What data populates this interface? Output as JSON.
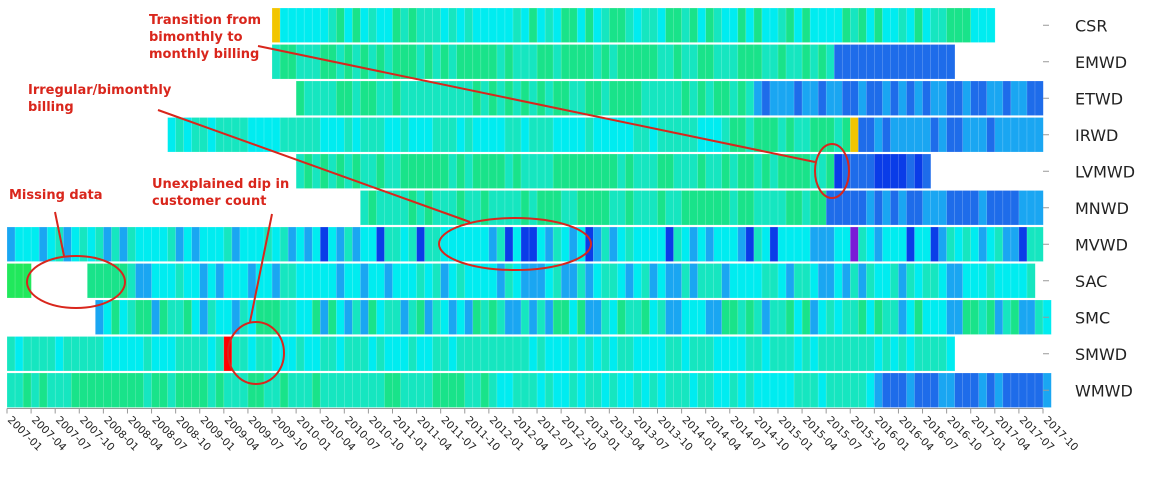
{
  "chart_data": {
    "type": "heatmap",
    "title": "",
    "xlabel": "",
    "ylabel": "",
    "rows": [
      "CSR",
      "EMWD",
      "ETWD",
      "IRWD",
      "LVMWD",
      "MNWD",
      "MVWD",
      "SAC",
      "SMC",
      "SMWD",
      "WMWD"
    ],
    "x_range": [
      "2007-01",
      "2017-10"
    ],
    "x_ticks": [
      "2007-01",
      "2007-04",
      "2007-07",
      "2007-10",
      "2008-01",
      "2008-04",
      "2008-07",
      "2008-10",
      "2009-01",
      "2009-04",
      "2009-07",
      "2009-10",
      "2010-01",
      "2010-04",
      "2010-07",
      "2010-10",
      "2011-01",
      "2011-04",
      "2011-07",
      "2011-10",
      "2012-01",
      "2012-04",
      "2012-07",
      "2012-10",
      "2013-01",
      "2013-04",
      "2013-07",
      "2013-10",
      "2014-01",
      "2014-04",
      "2014-07",
      "2014-10",
      "2015-01",
      "2015-04",
      "2015-07",
      "2015-10",
      "2016-01",
      "2016-04",
      "2016-07",
      "2016-10",
      "2017-01",
      "2017-04",
      "2017-07",
      "2017-10"
    ],
    "series_spans": [
      {
        "row": "CSR",
        "start": "2009-10",
        "end": "2017-03"
      },
      {
        "row": "EMWD",
        "start": "2009-10",
        "end": "2016-10"
      },
      {
        "row": "ETWD",
        "start": "2010-01",
        "end": "2017-09"
      },
      {
        "row": "IRWD",
        "start": "2008-09",
        "end": "2017-09"
      },
      {
        "row": "LVMWD",
        "start": "2010-01",
        "end": "2016-07"
      },
      {
        "row": "MNWD",
        "start": "2010-09",
        "end": "2017-09"
      },
      {
        "row": "MVWD",
        "start": "2007-01",
        "end": "2017-09"
      },
      {
        "row": "SAC",
        "start": "2007-01",
        "end": "2017-08"
      },
      {
        "row": "SMC",
        "start": "2007-12",
        "end": "2017-10"
      },
      {
        "row": "SMWD",
        "start": "2007-01",
        "end": "2016-10"
      },
      {
        "row": "WMWD",
        "start": "2007-01",
        "end": "2017-10"
      }
    ],
    "gaps": [
      {
        "row": "SAC",
        "start": "2007-04",
        "end": "2007-10"
      }
    ],
    "highlights": [
      {
        "row": "CSR",
        "month": "2009-10",
        "color": "#f2c500"
      },
      {
        "row": "IRWD",
        "month": "2015-10",
        "color": "#f2c500"
      },
      {
        "row": "MVWD",
        "month": "2015-10",
        "color": "#7a1bd6"
      },
      {
        "row": "SMWD",
        "month": "2009-04",
        "color": "#ff0000"
      }
    ],
    "annotations": [
      {
        "text": "Transition from bimonthly to monthly billing",
        "lines": [
          "Transition from",
          "bimonthly to",
          "monthly billing"
        ]
      },
      {
        "text": "Irregular/bimonthly billing",
        "lines": [
          "Irregular/bimonthly",
          "billing"
        ]
      },
      {
        "text": "Missing data",
        "lines": [
          "Missing data"
        ]
      },
      {
        "text": "Unexplained dip in customer count",
        "lines": [
          "Unexplained dip in",
          "customer count"
        ]
      }
    ],
    "legend": "none",
    "grid": false,
    "colors": {
      "green": "#21e85c",
      "light_green": "#19e38a",
      "teal": "#16e6c0",
      "cyan": "#00ecf0",
      "light_blue": "#1aa6f2",
      "blue": "#1e6cea",
      "dark_blue": "#0a3ce8",
      "annotation": "#d9261c"
    }
  }
}
